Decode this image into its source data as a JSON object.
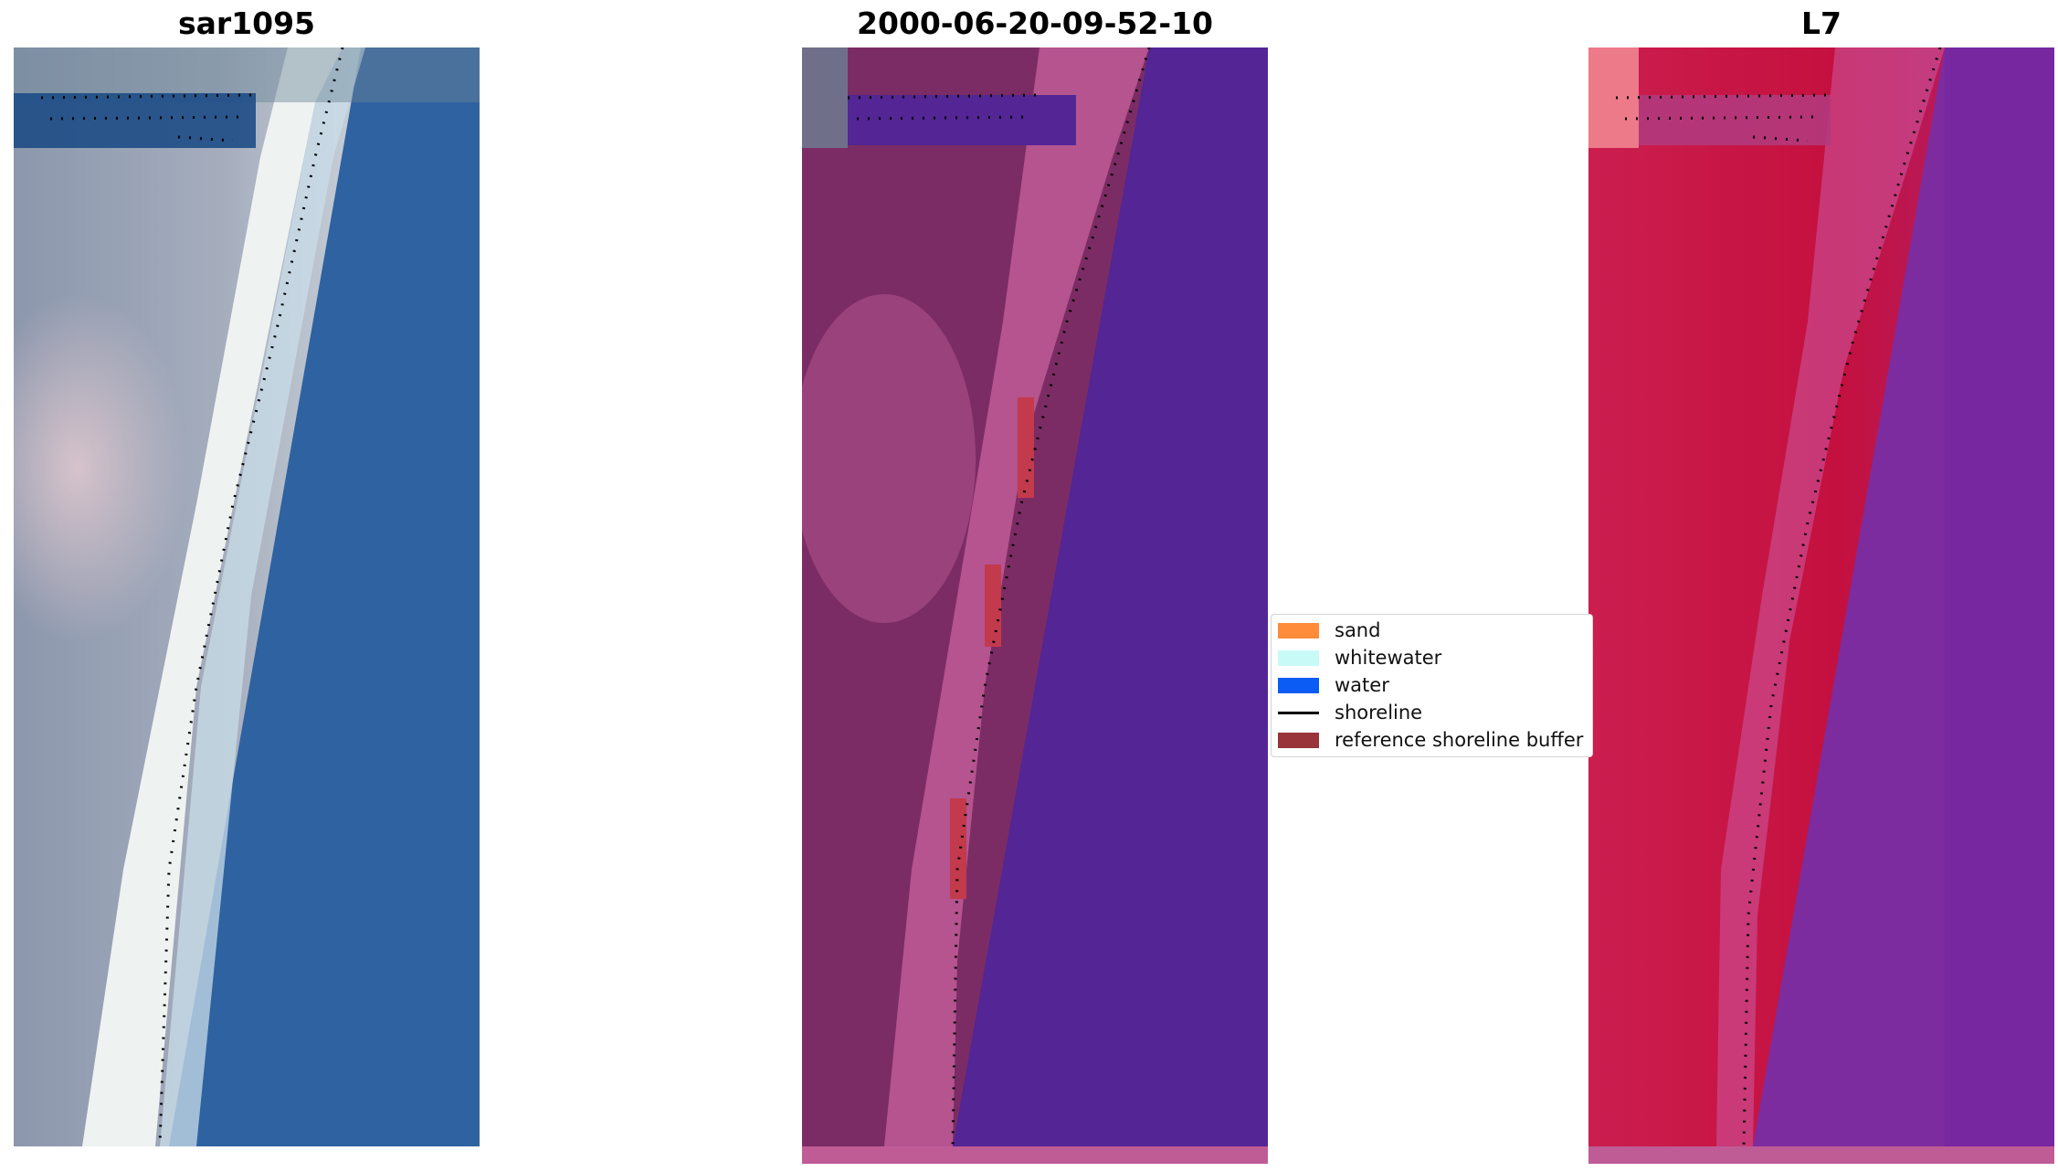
{
  "panels": {
    "rgb": {
      "title": "sar1095"
    },
    "classified": {
      "title": "2000-06-20-09-52-10"
    },
    "index": {
      "title": "L7"
    }
  },
  "legend": {
    "items": [
      {
        "label": "sand",
        "color": "#ff8c3a",
        "kind": "patch"
      },
      {
        "label": "whitewater",
        "color": "#c8fbf8",
        "kind": "patch"
      },
      {
        "label": "water",
        "color": "#0a5cf5",
        "kind": "patch"
      },
      {
        "label": "shoreline",
        "color": "#000000",
        "kind": "line"
      },
      {
        "label": "reference shoreline buffer",
        "color": "#98343a",
        "kind": "patch"
      }
    ]
  },
  "colors": {
    "rgb_water": "#2f62a0",
    "rgb_surf": "#f1f5f4",
    "rgb_land": "#9aa3b6",
    "cls_water": "#532595",
    "cls_land": "#7c2c65",
    "cls_sand_overlay": "#bf5c96",
    "idx_land": "#c51044",
    "idx_water": "#7c2c9e",
    "buffer": "#c23a4c"
  }
}
